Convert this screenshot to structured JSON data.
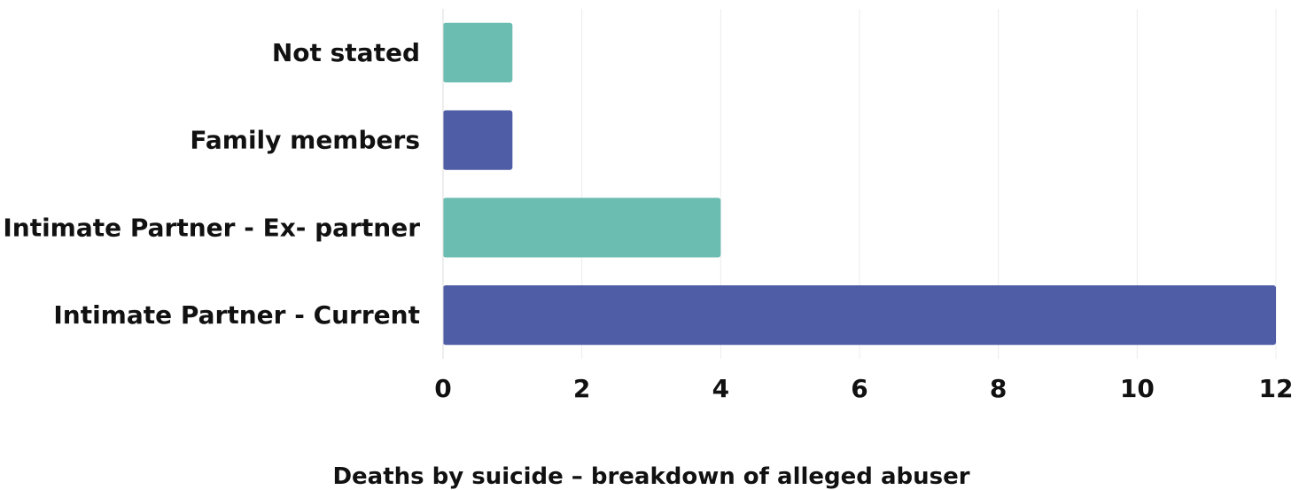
{
  "chart_data": {
    "type": "bar",
    "orientation": "horizontal",
    "categories": [
      "Not stated",
      "Family members",
      "Intimate Partner - Ex- partner",
      "Intimate Partner - Current"
    ],
    "values": [
      1,
      1,
      4,
      12
    ],
    "bar_colors": [
      "#6bbcb1",
      "#4f5ca6",
      "#6bbcb1",
      "#4f5ca6"
    ],
    "xlim": [
      0,
      12
    ],
    "x_ticks": [
      0,
      2,
      4,
      6,
      8,
      10,
      12
    ],
    "grid": true,
    "xlabel": "Deaths by suicide – breakdown of alleged abuser",
    "ylabel": ""
  }
}
